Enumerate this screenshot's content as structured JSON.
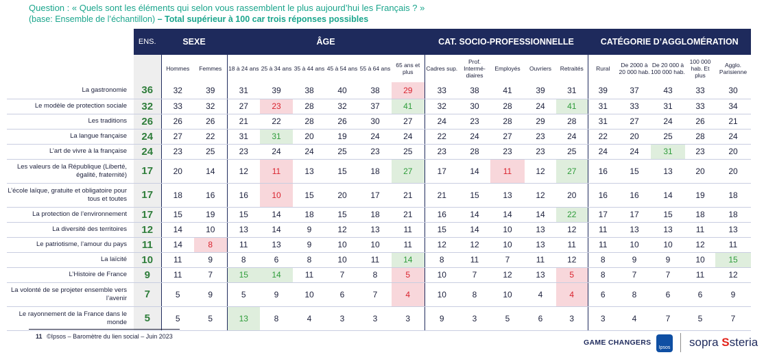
{
  "question": {
    "line1": "Question : « Quels sont les éléments qui selon vous rassemblent le plus aujourd’hui les Français ? »",
    "line2_base": "(base: Ensemble de l’échantillon)",
    "line2_bold": " – Total supérieur à 100 car trois réponses possibles"
  },
  "groups": {
    "ens": "ENS.",
    "sexe": "SEXE",
    "age": "ÂGE",
    "csp": "CAT. SOCIO-PROFESSIONNELLE",
    "agglo": "CATÉGORIE D’AGGLOMÉRATION"
  },
  "columns": [
    "Hommes",
    "Femmes",
    "18 à 24 ans",
    "25 à 34 ans",
    "35 à 44 ans",
    "45 à 54 ans",
    "55 à 64 ans",
    "65 ans et plus",
    "Cadres sup.",
    "Prof. Intermé-diaires",
    "Employés",
    "Ouvriers",
    "Retraités",
    "Rural",
    "De 2000 à 20 000 hab.",
    "De 20 000 à 100 000 hab.",
    "100 000 hab. Et plus",
    "Agglo. Parisienne"
  ],
  "rows": [
    {
      "label": "La gastronomie",
      "ens": "36",
      "values": [
        "32",
        "39",
        "31",
        "39",
        "38",
        "40",
        "38",
        "29",
        "33",
        "38",
        "41",
        "39",
        "31",
        "39",
        "37",
        "43",
        "33",
        "30"
      ],
      "hl": {
        "7": "red"
      }
    },
    {
      "label": "Le modèle de protection sociale",
      "ens": "32",
      "values": [
        "33",
        "32",
        "27",
        "23",
        "28",
        "32",
        "37",
        "41",
        "32",
        "30",
        "28",
        "24",
        "41",
        "31",
        "33",
        "31",
        "33",
        "34"
      ],
      "hl": {
        "3": "red",
        "7": "green",
        "12": "green"
      }
    },
    {
      "label": "Les traditions",
      "ens": "26",
      "values": [
        "26",
        "26",
        "21",
        "22",
        "28",
        "26",
        "30",
        "27",
        "24",
        "23",
        "28",
        "29",
        "28",
        "31",
        "27",
        "24",
        "26",
        "21"
      ],
      "hl": {}
    },
    {
      "label": "La langue française",
      "ens": "24",
      "values": [
        "27",
        "22",
        "31",
        "31",
        "20",
        "19",
        "24",
        "24",
        "22",
        "24",
        "27",
        "23",
        "24",
        "22",
        "20",
        "25",
        "28",
        "24"
      ],
      "hl": {
        "3": "green"
      }
    },
    {
      "label": "L’art de vivre à la française",
      "ens": "24",
      "values": [
        "23",
        "25",
        "23",
        "24",
        "24",
        "25",
        "23",
        "25",
        "23",
        "28",
        "23",
        "23",
        "25",
        "24",
        "24",
        "31",
        "23",
        "20"
      ],
      "hl": {
        "15": "green"
      }
    },
    {
      "label": "Les valeurs de la République (Liberté, égalité, fraternité)",
      "ens": "17",
      "values": [
        "20",
        "14",
        "12",
        "11",
        "13",
        "15",
        "18",
        "27",
        "17",
        "14",
        "11",
        "12",
        "27",
        "16",
        "15",
        "13",
        "20",
        "20"
      ],
      "hl": {
        "3": "red",
        "7": "green",
        "10": "red",
        "12": "green"
      }
    },
    {
      "label": "L’école laïque, gratuite et obligatoire pour tous et toutes",
      "ens": "17",
      "values": [
        "18",
        "16",
        "16",
        "10",
        "15",
        "20",
        "17",
        "21",
        "21",
        "15",
        "13",
        "12",
        "20",
        "16",
        "16",
        "14",
        "19",
        "18"
      ],
      "hl": {
        "3": "red"
      }
    },
    {
      "label": "La protection de l’environnement",
      "ens": "17",
      "values": [
        "15",
        "19",
        "15",
        "14",
        "18",
        "15",
        "18",
        "21",
        "16",
        "14",
        "14",
        "14",
        "22",
        "17",
        "17",
        "15",
        "18",
        "18"
      ],
      "hl": {
        "12": "green"
      }
    },
    {
      "label": "La diversité des territoires",
      "ens": "12",
      "values": [
        "14",
        "10",
        "13",
        "14",
        "9",
        "12",
        "13",
        "11",
        "15",
        "14",
        "10",
        "13",
        "12",
        "11",
        "13",
        "13",
        "11",
        "13"
      ],
      "hl": {}
    },
    {
      "label": "Le patriotisme, l’amour du pays",
      "ens": "11",
      "values": [
        "14",
        "8",
        "11",
        "13",
        "9",
        "10",
        "10",
        "11",
        "12",
        "12",
        "10",
        "13",
        "11",
        "11",
        "10",
        "10",
        "12",
        "11"
      ],
      "hl": {
        "1": "red"
      }
    },
    {
      "label": "La laïcité",
      "ens": "10",
      "values": [
        "11",
        "9",
        "8",
        "6",
        "8",
        "10",
        "11",
        "14",
        "8",
        "11",
        "7",
        "11",
        "12",
        "8",
        "9",
        "9",
        "10",
        "15"
      ],
      "hl": {
        "7": "green",
        "17": "green"
      }
    },
    {
      "label": "L’Histoire de France",
      "ens": "9",
      "values": [
        "11",
        "7",
        "15",
        "14",
        "11",
        "7",
        "8",
        "5",
        "10",
        "7",
        "12",
        "13",
        "5",
        "8",
        "7",
        "7",
        "11",
        "12"
      ],
      "hl": {
        "2": "green",
        "3": "green",
        "7": "red",
        "12": "red"
      }
    },
    {
      "label": "La volonté de se projeter ensemble vers l’avenir",
      "ens": "7",
      "values": [
        "5",
        "9",
        "5",
        "9",
        "10",
        "6",
        "7",
        "4",
        "10",
        "8",
        "10",
        "4",
        "4",
        "6",
        "8",
        "6",
        "6",
        "9"
      ],
      "hl": {
        "7": "red",
        "12": "red"
      }
    },
    {
      "label": "Le rayonnement de la France dans le monde",
      "ens": "5",
      "values": [
        "5",
        "5",
        "13",
        "8",
        "4",
        "3",
        "3",
        "3",
        "9",
        "3",
        "5",
        "6",
        "3",
        "3",
        "4",
        "7",
        "5",
        "7"
      ],
      "hl": {
        "2": "green"
      }
    }
  ],
  "footer": {
    "page": "11",
    "source": "©Ipsos – Baromètre du lien social – Juin 2023"
  },
  "brands": {
    "game_changers": "GAME CHANGERS",
    "ipsos": "Ipsos",
    "sopra_a": "sopra",
    "sopra_b": "steria"
  },
  "colors": {
    "header_bg": "#1e2a5c",
    "question": "#1aa58c",
    "ens_value": "#2e7d3a",
    "highlight_red": "#f8d7db",
    "highlight_green": "#dfeedd"
  }
}
